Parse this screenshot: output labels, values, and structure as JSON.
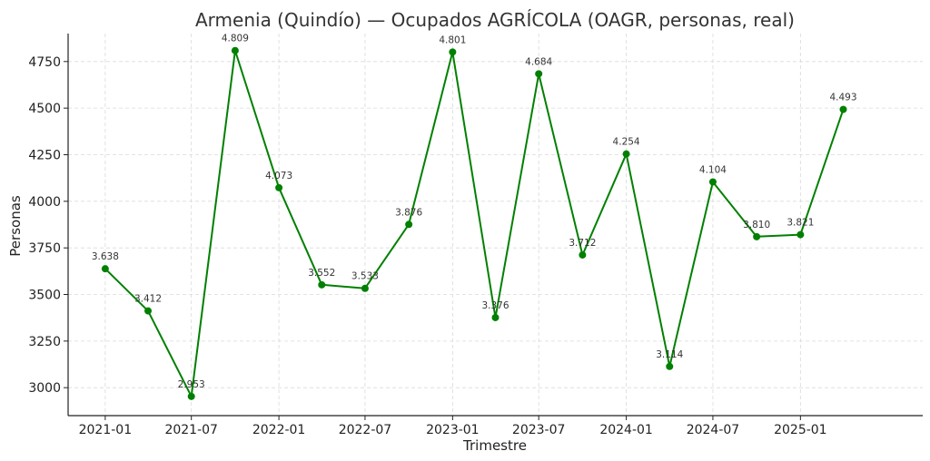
{
  "chart_data": {
    "type": "line",
    "title": "Armenia (Quindío) — Ocupados AGRÍCOLA (OAGR, personas, real)",
    "xlabel": "Trimestre",
    "ylabel": "Personas",
    "x": [
      "2021-01",
      "2021-04",
      "2021-07",
      "2021-10",
      "2022-01",
      "2022-04",
      "2022-07",
      "2022-10",
      "2023-01",
      "2023-04",
      "2023-07",
      "2023-10",
      "2024-01",
      "2024-04",
      "2024-07",
      "2024-10",
      "2025-01",
      "2025-04"
    ],
    "x_ticks": [
      "2021-01",
      "2021-07",
      "2022-01",
      "2022-07",
      "2023-01",
      "2023-07",
      "2024-01",
      "2024-07",
      "2025-01"
    ],
    "x_range": [
      "2020-10-15",
      "2025-09-15"
    ],
    "y_ticks": [
      3000,
      3250,
      3500,
      3750,
      4000,
      4250,
      4500,
      4750
    ],
    "ylim": [
      2850,
      4900
    ],
    "grid": true,
    "color": "#008000",
    "series": [
      {
        "values": [
          3638,
          3412,
          2953,
          4809,
          4073,
          3552,
          3533,
          3876,
          4801,
          3376,
          4684,
          3712,
          4254,
          3114,
          4104,
          3810,
          3821,
          4493
        ],
        "labels": [
          "3.638",
          "3.412",
          "2.953",
          "4.809",
          "4.073",
          "3.552",
          "3.533",
          "3.876",
          "4.801",
          "3.376",
          "4.684",
          "3.712",
          "4.254",
          "3.114",
          "4.104",
          "3.810",
          "3.821",
          "4.493"
        ]
      }
    ]
  }
}
